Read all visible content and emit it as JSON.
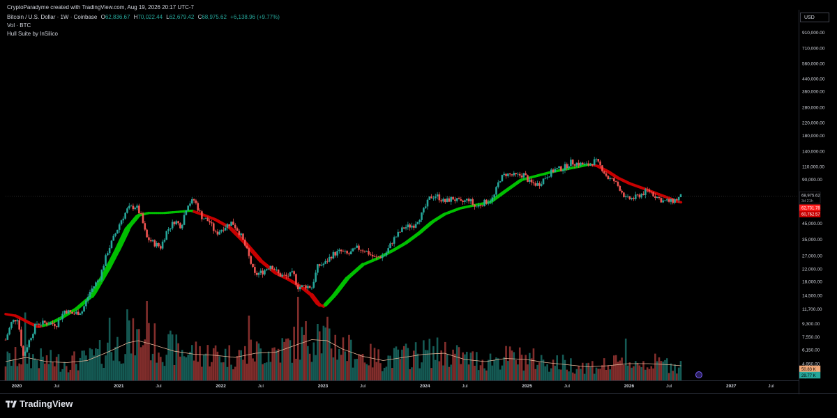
{
  "header": {
    "published": "CryptoParadyme created with TradingView.com, Aug 19, 2026 20:17 UTC-7",
    "symbol": "Bitcoin / U.S. Dollar · 1W · Coinbase",
    "open_label": "O",
    "open": "62,836.67",
    "high_label": "H",
    "high": "70,022.44",
    "low_label": "L",
    "low": "62,679.42",
    "close_label": "C",
    "close": "68,975.62",
    "change": "+6,138.96 (+9.77%)",
    "indicator_vol": "Vol · BTC",
    "indicator_hull": "Hull Suite by InSilico"
  },
  "currency_button": "USD",
  "watermark": "TradingView",
  "colors": {
    "up": "#26a69a",
    "down": "#ef5350",
    "hull_up": "#00c000",
    "hull_down": "#c80000",
    "volume_ma": "#e8b89a",
    "background": "#000000"
  },
  "chart_data": {
    "type": "candlestick",
    "scale": "log",
    "ylim": [
      3800,
      1300000
    ],
    "x_start": "2020-01",
    "x_end": "2027-10",
    "price_tick_labels": [
      "910,000.00",
      "710,000.00",
      "560,000.00",
      "440,000.00",
      "360,000.00",
      "280,000.00",
      "220,000.00",
      "180,000.00",
      "140,000.00",
      "110,000.00",
      "90,000.00",
      "45,000.00",
      "35,000.00",
      "27,000.00",
      "22,000.00",
      "18,000.00",
      "14,500.00",
      "11,700.00",
      "9,300.00",
      "7,550.00",
      "6,150.00",
      "4,950.00",
      "4,050.00"
    ],
    "price_ticks": [
      910000,
      710000,
      560000,
      440000,
      360000,
      280000,
      220000,
      180000,
      140000,
      110000,
      90000,
      45000,
      35000,
      27000,
      22000,
      18000,
      14500,
      11700,
      9300,
      7550,
      6150,
      4950,
      4050
    ],
    "time_ticks": [
      {
        "label": "2020",
        "t": 2020.0,
        "bold": true
      },
      {
        "label": "Jul",
        "t": 2020.5,
        "bold": false
      },
      {
        "label": "2021",
        "t": 2021.0,
        "bold": true
      },
      {
        "label": "Jul",
        "t": 2021.5,
        "bold": false
      },
      {
        "label": "2022",
        "t": 2022.0,
        "bold": true
      },
      {
        "label": "Jul",
        "t": 2022.5,
        "bold": false
      },
      {
        "label": "2023",
        "t": 2023.0,
        "bold": true
      },
      {
        "label": "Jul",
        "t": 2023.5,
        "bold": false
      },
      {
        "label": "2024",
        "t": 2024.0,
        "bold": true
      },
      {
        "label": "Jul",
        "t": 2024.5,
        "bold": false
      },
      {
        "label": "2025",
        "t": 2025.0,
        "bold": true
      },
      {
        "label": "Jul",
        "t": 2025.5,
        "bold": false
      },
      {
        "label": "2026",
        "t": 2026.0,
        "bold": true
      },
      {
        "label": "Jul",
        "t": 2026.5,
        "bold": false
      },
      {
        "label": "2027",
        "t": 2027.0,
        "bold": true
      },
      {
        "label": "Jul",
        "t": 2027.5,
        "bold": false
      }
    ],
    "price_path": [
      [
        2020.0,
        7200
      ],
      [
        2020.06,
        9500
      ],
      [
        2020.12,
        10200
      ],
      [
        2020.17,
        5500
      ],
      [
        2020.22,
        6800
      ],
      [
        2020.3,
        9300
      ],
      [
        2020.4,
        9400
      ],
      [
        2020.5,
        9200
      ],
      [
        2020.58,
        11500
      ],
      [
        2020.66,
        10800
      ],
      [
        2020.75,
        11300
      ],
      [
        2020.83,
        15500
      ],
      [
        2020.92,
        19000
      ],
      [
        2021.0,
        29000
      ],
      [
        2021.06,
        36000
      ],
      [
        2021.13,
        47000
      ],
      [
        2021.2,
        57000
      ],
      [
        2021.28,
        59000
      ],
      [
        2021.33,
        50000
      ],
      [
        2021.38,
        36000
      ],
      [
        2021.45,
        33000
      ],
      [
        2021.52,
        31000
      ],
      [
        2021.58,
        40000
      ],
      [
        2021.66,
        47000
      ],
      [
        2021.72,
        43000
      ],
      [
        2021.78,
        61000
      ],
      [
        2021.85,
        65000
      ],
      [
        2021.92,
        50000
      ],
      [
        2022.0,
        46000
      ],
      [
        2022.06,
        38000
      ],
      [
        2022.13,
        42000
      ],
      [
        2022.22,
        46000
      ],
      [
        2022.3,
        38000
      ],
      [
        2022.36,
        30000
      ],
      [
        2022.44,
        20000
      ],
      [
        2022.52,
        21000
      ],
      [
        2022.6,
        23500
      ],
      [
        2022.68,
        20000
      ],
      [
        2022.75,
        19500
      ],
      [
        2022.82,
        20500
      ],
      [
        2022.86,
        16500
      ],
      [
        2022.95,
        16800
      ],
      [
        2023.0,
        16500
      ],
      [
        2023.06,
        23000
      ],
      [
        2023.13,
        24000
      ],
      [
        2023.2,
        27500
      ],
      [
        2023.28,
        29000
      ],
      [
        2023.36,
        27500
      ],
      [
        2023.44,
        30500
      ],
      [
        2023.52,
        29500
      ],
      [
        2023.62,
        26000
      ],
      [
        2023.72,
        27500
      ],
      [
        2023.8,
        35000
      ],
      [
        2023.9,
        42000
      ],
      [
        2024.0,
        44000
      ],
      [
        2024.08,
        52000
      ],
      [
        2024.16,
        68000
      ],
      [
        2024.22,
        70000
      ],
      [
        2024.3,
        63000
      ],
      [
        2024.38,
        67000
      ],
      [
        2024.46,
        62000
      ],
      [
        2024.54,
        66000
      ],
      [
        2024.6,
        58000
      ],
      [
        2024.7,
        63000
      ],
      [
        2024.78,
        67000
      ],
      [
        2024.84,
        90000
      ],
      [
        2024.9,
        98000
      ],
      [
        2025.0,
        95000
      ],
      [
        2025.08,
        97000
      ],
      [
        2025.14,
        85000
      ],
      [
        2025.22,
        83000
      ],
      [
        2025.3,
        95000
      ],
      [
        2025.38,
        105000
      ],
      [
        2025.46,
        107000
      ],
      [
        2025.54,
        118000
      ],
      [
        2025.62,
        115000
      ],
      [
        2025.7,
        112000
      ],
      [
        2025.78,
        121000
      ],
      [
        2025.84,
        108000
      ],
      [
        2025.9,
        92000
      ],
      [
        2025.96,
        88000
      ],
      [
        2026.02,
        78000
      ],
      [
        2026.08,
        66000
      ],
      [
        2026.16,
        67000
      ],
      [
        2026.24,
        72000
      ],
      [
        2026.3,
        76000
      ],
      [
        2026.36,
        70000
      ],
      [
        2026.44,
        64000
      ],
      [
        2026.52,
        63500
      ],
      [
        2026.58,
        66000
      ],
      [
        2026.62,
        68975
      ]
    ],
    "hull_path": [
      [
        2020.0,
        10800
      ],
      [
        2020.1,
        10500
      ],
      [
        2020.22,
        9500
      ],
      [
        2020.32,
        8800
      ],
      [
        2020.42,
        9200
      ],
      [
        2020.55,
        10200
      ],
      [
        2020.7,
        11800
      ],
      [
        2020.85,
        14500
      ],
      [
        2021.0,
        22000
      ],
      [
        2021.1,
        30000
      ],
      [
        2021.2,
        42000
      ],
      [
        2021.3,
        51000
      ],
      [
        2021.4,
        53000
      ],
      [
        2021.55,
        53000
      ],
      [
        2021.7,
        54000
      ],
      [
        2021.82,
        55000
      ],
      [
        2021.92,
        52000
      ],
      [
        2022.05,
        48000
      ],
      [
        2022.2,
        42000
      ],
      [
        2022.35,
        33000
      ],
      [
        2022.5,
        25000
      ],
      [
        2022.65,
        20500
      ],
      [
        2022.78,
        18500
      ],
      [
        2022.9,
        16500
      ],
      [
        2023.0,
        14500
      ],
      [
        2023.07,
        12500
      ],
      [
        2023.12,
        12200
      ],
      [
        2023.22,
        14500
      ],
      [
        2023.35,
        19000
      ],
      [
        2023.5,
        23500
      ],
      [
        2023.65,
        26000
      ],
      [
        2023.8,
        29500
      ],
      [
        2023.92,
        33000
      ],
      [
        2024.05,
        38500
      ],
      [
        2024.18,
        46000
      ],
      [
        2024.3,
        52000
      ],
      [
        2024.45,
        57000
      ],
      [
        2024.6,
        60000
      ],
      [
        2024.75,
        63000
      ],
      [
        2024.9,
        75000
      ],
      [
        2025.05,
        89000
      ],
      [
        2025.2,
        95000
      ],
      [
        2025.35,
        101000
      ],
      [
        2025.5,
        106000
      ],
      [
        2025.62,
        110000
      ],
      [
        2025.72,
        114000
      ],
      [
        2025.8,
        111000
      ],
      [
        2025.9,
        102000
      ],
      [
        2026.0,
        92000
      ],
      [
        2026.12,
        84000
      ],
      [
        2026.25,
        78000
      ],
      [
        2026.38,
        72000
      ],
      [
        2026.5,
        67000
      ],
      [
        2026.58,
        63500
      ],
      [
        2026.62,
        62731
      ]
    ],
    "hull_turns": [
      {
        "t": 2020.0,
        "trend": "down"
      },
      {
        "t": 2020.36,
        "trend": "up"
      },
      {
        "t": 2021.84,
        "trend": "down"
      },
      {
        "t": 2023.12,
        "trend": "up"
      },
      {
        "t": 2025.74,
        "trend": "down"
      }
    ],
    "volume_ma_path": [
      [
        2020.0,
        1800
      ],
      [
        2020.2,
        2200
      ],
      [
        2020.4,
        1800
      ],
      [
        2020.6,
        1700
      ],
      [
        2020.8,
        1900
      ],
      [
        2021.0,
        2700
      ],
      [
        2021.2,
        3600
      ],
      [
        2021.3,
        3800
      ],
      [
        2021.45,
        3400
      ],
      [
        2021.65,
        2800
      ],
      [
        2021.85,
        2500
      ],
      [
        2022.05,
        2400
      ],
      [
        2022.25,
        2200
      ],
      [
        2022.45,
        2600
      ],
      [
        2022.65,
        2700
      ],
      [
        2022.85,
        3400
      ],
      [
        2023.0,
        3900
      ],
      [
        2023.15,
        3800
      ],
      [
        2023.3,
        3000
      ],
      [
        2023.5,
        2300
      ],
      [
        2023.7,
        1900
      ],
      [
        2023.9,
        2200
      ],
      [
        2024.1,
        2500
      ],
      [
        2024.3,
        2600
      ],
      [
        2024.5,
        2000
      ],
      [
        2024.7,
        1800
      ],
      [
        2024.9,
        2100
      ],
      [
        2025.1,
        2000
      ],
      [
        2025.3,
        1700
      ],
      [
        2025.5,
        1500
      ],
      [
        2025.7,
        1300
      ],
      [
        2025.9,
        1400
      ],
      [
        2026.1,
        1600
      ],
      [
        2026.3,
        1600
      ],
      [
        2026.5,
        1500
      ],
      [
        2026.62,
        1400
      ]
    ],
    "volume_spikes": [
      {
        "t": 2020.2,
        "v": 6500
      },
      {
        "t": 2021.02,
        "v": 6000
      },
      {
        "t": 2021.2,
        "v": 6800
      },
      {
        "t": 2021.38,
        "v": 7600
      },
      {
        "t": 2022.38,
        "v": 6200
      },
      {
        "t": 2022.86,
        "v": 8000
      },
      {
        "t": 2023.05,
        "v": 5400
      },
      {
        "t": 2026.07,
        "v": 4000
      }
    ],
    "volume_max": 8000,
    "price_labels": [
      {
        "text": "68,975.62",
        "sub": "3d 21h",
        "bg": "#000000",
        "color": "#d1d4dc"
      },
      {
        "text": "62,731.78",
        "bg": "#ff1f1f",
        "color": "#ffffff"
      },
      {
        "text": "60,762.57",
        "bg": "#c80000",
        "color": "#ffffff"
      },
      {
        "text": "50.83 K",
        "bg": "#f0a878",
        "color": "#000000"
      },
      {
        "text": "29.77 K",
        "bg": "#26a69a",
        "color": "#000000"
      }
    ]
  }
}
